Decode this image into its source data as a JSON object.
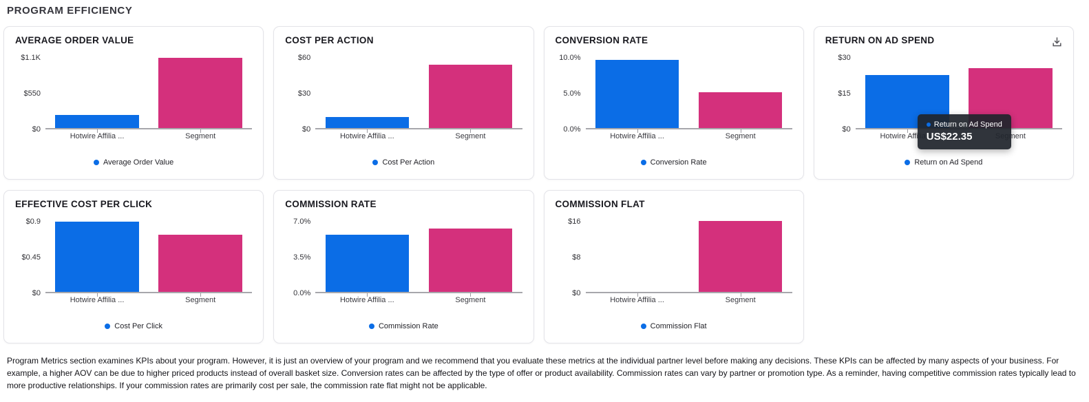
{
  "page": {
    "title": "PROGRAM EFFICIENCY"
  },
  "colors": {
    "series": [
      "#0b6de6",
      "#d4307c"
    ],
    "axis_line": "#a7a7ac",
    "tooltip_bg": "#20252c",
    "card_border": "#e3e3e8"
  },
  "icons": {
    "download": "tray-arrow-down",
    "legend_marker": "filled-circle",
    "tooltip_marker": "filled-circle"
  },
  "chart_data": [
    {
      "type": "bar",
      "title": "AVERAGE ORDER VALUE",
      "legend": "Average Order Value",
      "categories": [
        "Hotwire Affilia ...",
        "Segment"
      ],
      "values": [
        200,
        1080
      ],
      "y_ticks": [
        "$1.1K",
        "$550",
        "$0"
      ],
      "ylim": [
        0,
        1100
      ],
      "grid": false,
      "legend_position": "bottom-center"
    },
    {
      "type": "bar",
      "title": "COST PER ACTION",
      "legend": "Cost Per Action",
      "categories": [
        "Hotwire Affilia ...",
        "Segment"
      ],
      "values": [
        9,
        53
      ],
      "y_ticks": [
        "$60",
        "$30",
        "$0"
      ],
      "ylim": [
        0,
        60
      ],
      "grid": false,
      "legend_position": "bottom-center"
    },
    {
      "type": "bar",
      "title": "CONVERSION RATE",
      "legend": "Conversion Rate",
      "categories": [
        "Hotwire Affilia ...",
        "Segment"
      ],
      "values": [
        9.5,
        5.0
      ],
      "y_ticks": [
        "10.0%",
        "5.0%",
        "0.0%"
      ],
      "ylim": [
        0,
        10
      ],
      "grid": false,
      "legend_position": "bottom-center"
    },
    {
      "type": "bar",
      "title": "RETURN ON AD SPEND",
      "legend": "Return on Ad Spend",
      "categories": [
        "Hotwire Affilia ...",
        "Segment"
      ],
      "values": [
        22.35,
        25.1
      ],
      "y_ticks": [
        "$30",
        "$15",
        "$0"
      ],
      "ylim": [
        0,
        30
      ],
      "grid": false,
      "legend_position": "bottom-center",
      "has_download_icon": true,
      "tooltip": {
        "label": "Return on Ad Spend",
        "value": "US$22.35"
      }
    },
    {
      "type": "bar",
      "title": "EFFECTIVE COST PER CLICK",
      "legend": "Cost Per Click",
      "categories": [
        "Hotwire Affilia ...",
        "Segment"
      ],
      "values": [
        0.88,
        0.72
      ],
      "y_ticks": [
        "$0.9",
        "$0.45",
        "$0"
      ],
      "ylim": [
        0,
        0.9
      ],
      "grid": false,
      "legend_position": "bottom-center"
    },
    {
      "type": "bar",
      "title": "COMMISSION RATE",
      "legend": "Commission Rate",
      "categories": [
        "Hotwire Affilia ...",
        "Segment"
      ],
      "values": [
        5.6,
        6.2
      ],
      "y_ticks": [
        "7.0%",
        "3.5%",
        "0.0%"
      ],
      "ylim": [
        0,
        7
      ],
      "grid": false,
      "legend_position": "bottom-center"
    },
    {
      "type": "bar",
      "title": "COMMISSION FLAT",
      "legend": "Commission Flat",
      "categories": [
        "Hotwire Affilia ...",
        "Segment"
      ],
      "values": [
        0,
        15.9
      ],
      "y_ticks": [
        "$16",
        "$8",
        "$0"
      ],
      "ylim": [
        0,
        16
      ],
      "grid": false,
      "legend_position": "bottom-center"
    }
  ],
  "footer": {
    "text": "Program Metrics section examines KPIs about your program. However, it is just an overview of your program and we recommend that you evaluate these metrics at the individual partner level before making any decisions. These KPIs can be affected by many aspects of your business. For example, a higher AOV can be due to higher priced products instead of overall basket size. Conversion rates can be affected by the type of offer or product availability. Commission rates can vary by partner or promotion type.  As a reminder, having competitive commission rates typically lead to more productive relationships. If your commission rates are primarily cost per sale, the commission rate flat might not be applicable."
  }
}
